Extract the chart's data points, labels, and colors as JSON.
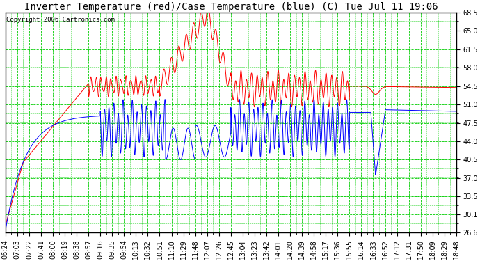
{
  "title": "Inverter Temperature (red)/Case Temperature (blue) (C) Tue Jul 11 19:06",
  "copyright": "Copyright 2006 Cartronics.com",
  "ylim": [
    26.6,
    68.5
  ],
  "yticks": [
    26.6,
    30.1,
    33.5,
    37.0,
    40.5,
    44.0,
    47.5,
    51.0,
    54.5,
    58.0,
    61.5,
    65.0,
    68.5
  ],
  "xtick_labels": [
    "06:24",
    "07:03",
    "07:22",
    "07:41",
    "08:00",
    "08:19",
    "08:38",
    "08:57",
    "09:16",
    "09:35",
    "09:54",
    "10:13",
    "10:32",
    "10:51",
    "11:10",
    "11:29",
    "11:48",
    "12:07",
    "12:26",
    "12:45",
    "13:04",
    "13:23",
    "13:42",
    "14:01",
    "14:20",
    "14:39",
    "14:58",
    "15:17",
    "15:36",
    "15:55",
    "16:14",
    "16:33",
    "16:52",
    "17:12",
    "17:31",
    "17:50",
    "18:09",
    "18:29",
    "18:48"
  ],
  "bg_color": "#ffffff",
  "plot_bg_color": "#ffffff",
  "grid_color": "#00cc00",
  "line_red": "#ff0000",
  "line_blue": "#0000ff",
  "title_fontsize": 10,
  "tick_fontsize": 7,
  "copyright_fontsize": 6.5
}
